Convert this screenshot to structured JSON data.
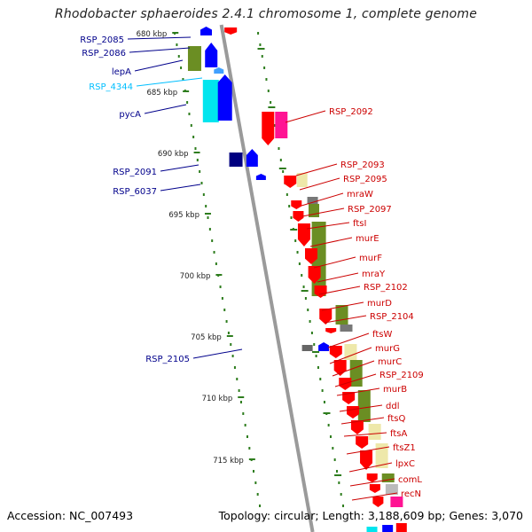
{
  "title": "Rhodobacter sphaeroides 2.4.1 chromosome 1, complete genome",
  "accession": "Accession: NC_007493",
  "summary": {
    "topology": "Topology: circular;",
    "length": "Length: 3,188,609 bp;",
    "genes": "Genes: 3,070"
  },
  "colors": {
    "backbone": "#9a9a9a",
    "tick": "#2e7d1e",
    "forward_label": "#00008b",
    "reverse_label": "#cc0000",
    "rna_label": "#00bfff"
  },
  "scale_ticks": [
    {
      "text": "680 kbp"
    },
    {
      "text": "685 kbp"
    },
    {
      "text": "690 kbp"
    },
    {
      "text": "695 kbp"
    },
    {
      "text": "700 kbp"
    },
    {
      "text": "705 kbp"
    },
    {
      "text": "710 kbp"
    },
    {
      "text": "715 kbp"
    }
  ],
  "forward_labels": [
    {
      "text": "RSP_2085",
      "color": "#00008b"
    },
    {
      "text": "RSP_2086",
      "color": "#00008b"
    },
    {
      "text": "lepA",
      "color": "#00008b"
    },
    {
      "text": "RSP_4344",
      "color": "#00bfff"
    },
    {
      "text": "pycA",
      "color": "#00008b"
    },
    {
      "text": "RSP_2091",
      "color": "#00008b"
    },
    {
      "text": "RSP_6037",
      "color": "#00008b"
    },
    {
      "text": "RSP_2105",
      "color": "#00008b"
    }
  ],
  "reverse_labels": [
    {
      "text": "RSP_2092"
    },
    {
      "text": "RSP_2093"
    },
    {
      "text": "RSP_2095"
    },
    {
      "text": "mraW"
    },
    {
      "text": "RSP_2097"
    },
    {
      "text": "ftsI"
    },
    {
      "text": "murE"
    },
    {
      "text": "murF"
    },
    {
      "text": "mraY"
    },
    {
      "text": "RSP_2102"
    },
    {
      "text": "murD"
    },
    {
      "text": "RSP_2104"
    },
    {
      "text": "ftsW"
    },
    {
      "text": "murG"
    },
    {
      "text": "murC"
    },
    {
      "text": "RSP_2109"
    },
    {
      "text": "murB"
    },
    {
      "text": "ddl"
    },
    {
      "text": "ftsQ"
    },
    {
      "text": "ftsA"
    },
    {
      "text": "ftsZ1"
    },
    {
      "text": "lpxC"
    },
    {
      "text": "comL"
    },
    {
      "text": "recN"
    }
  ]
}
